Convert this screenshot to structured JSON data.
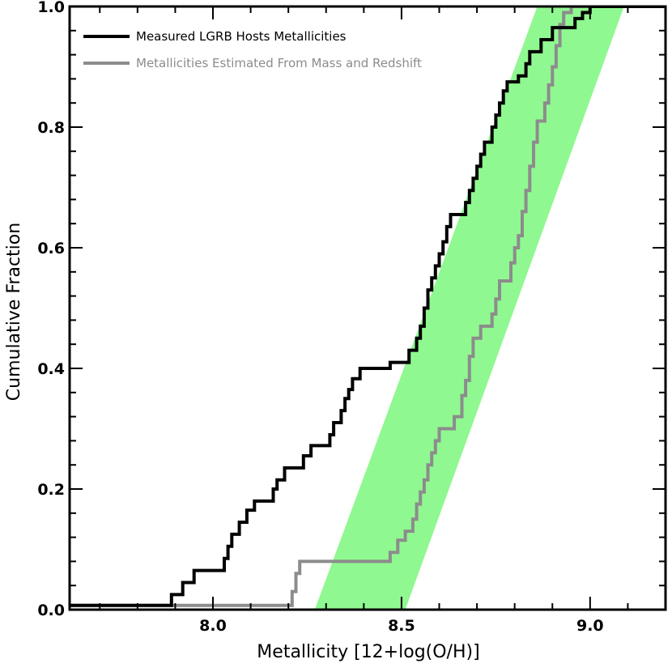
{
  "chart_data": {
    "type": "line",
    "title": "",
    "xlabel": "Metallicity [12+log(O/H)]",
    "ylabel": "Cumulative Fraction",
    "xlim": [
      7.62,
      9.2
    ],
    "ylim": [
      0.0,
      1.0
    ],
    "x_ticks": [
      8.0,
      8.5,
      9.0
    ],
    "x_tick_labels": [
      "8.0",
      "8.5",
      "9.0"
    ],
    "y_ticks": [
      0.0,
      0.2,
      0.4,
      0.6,
      0.8,
      1.0
    ],
    "y_tick_labels": [
      "0.0",
      "0.2",
      "0.4",
      "0.6",
      "0.8",
      "1.0"
    ],
    "grid": false,
    "legend_position": "top-left",
    "band": {
      "color": "#90f890",
      "polygon": [
        [
          8.27,
          0.0
        ],
        [
          8.51,
          0.0
        ],
        [
          9.09,
          1.0
        ],
        [
          8.86,
          1.0
        ]
      ]
    },
    "series": [
      {
        "name": "Measured LGRB Hosts Metallicities",
        "color": "#000000",
        "step_points": [
          [
            7.62,
            0.007
          ],
          [
            7.89,
            0.007
          ],
          [
            7.89,
            0.025
          ],
          [
            7.92,
            0.025
          ],
          [
            7.92,
            0.045
          ],
          [
            7.95,
            0.045
          ],
          [
            7.95,
            0.065
          ],
          [
            8.03,
            0.065
          ],
          [
            8.03,
            0.085
          ],
          [
            8.04,
            0.085
          ],
          [
            8.04,
            0.105
          ],
          [
            8.05,
            0.105
          ],
          [
            8.05,
            0.125
          ],
          [
            8.07,
            0.125
          ],
          [
            8.07,
            0.145
          ],
          [
            8.09,
            0.145
          ],
          [
            8.09,
            0.165
          ],
          [
            8.11,
            0.165
          ],
          [
            8.11,
            0.18
          ],
          [
            8.16,
            0.18
          ],
          [
            8.16,
            0.2
          ],
          [
            8.17,
            0.2
          ],
          [
            8.17,
            0.215
          ],
          [
            8.19,
            0.215
          ],
          [
            8.19,
            0.235
          ],
          [
            8.24,
            0.235
          ],
          [
            8.24,
            0.255
          ],
          [
            8.26,
            0.255
          ],
          [
            8.26,
            0.272
          ],
          [
            8.31,
            0.272
          ],
          [
            8.31,
            0.29
          ],
          [
            8.32,
            0.29
          ],
          [
            8.32,
            0.31
          ],
          [
            8.34,
            0.31
          ],
          [
            8.34,
            0.33
          ],
          [
            8.35,
            0.33
          ],
          [
            8.35,
            0.35
          ],
          [
            8.36,
            0.35
          ],
          [
            8.36,
            0.365
          ],
          [
            8.37,
            0.365
          ],
          [
            8.37,
            0.383
          ],
          [
            8.39,
            0.383
          ],
          [
            8.39,
            0.4
          ],
          [
            8.47,
            0.4
          ],
          [
            8.47,
            0.41
          ],
          [
            8.52,
            0.41
          ],
          [
            8.52,
            0.43
          ],
          [
            8.54,
            0.43
          ],
          [
            8.54,
            0.45
          ],
          [
            8.55,
            0.45
          ],
          [
            8.55,
            0.47
          ],
          [
            8.56,
            0.47
          ],
          [
            8.56,
            0.5
          ],
          [
            8.57,
            0.5
          ],
          [
            8.57,
            0.53
          ],
          [
            8.58,
            0.53
          ],
          [
            8.58,
            0.55
          ],
          [
            8.59,
            0.55
          ],
          [
            8.59,
            0.57
          ],
          [
            8.6,
            0.57
          ],
          [
            8.6,
            0.59
          ],
          [
            8.61,
            0.59
          ],
          [
            8.61,
            0.61
          ],
          [
            8.62,
            0.61
          ],
          [
            8.62,
            0.635
          ],
          [
            8.63,
            0.635
          ],
          [
            8.63,
            0.655
          ],
          [
            8.67,
            0.655
          ],
          [
            8.67,
            0.675
          ],
          [
            8.68,
            0.675
          ],
          [
            8.68,
            0.695
          ],
          [
            8.69,
            0.695
          ],
          [
            8.69,
            0.715
          ],
          [
            8.7,
            0.715
          ],
          [
            8.7,
            0.735
          ],
          [
            8.71,
            0.735
          ],
          [
            8.71,
            0.755
          ],
          [
            8.72,
            0.755
          ],
          [
            8.72,
            0.775
          ],
          [
            8.74,
            0.775
          ],
          [
            8.74,
            0.8
          ],
          [
            8.75,
            0.8
          ],
          [
            8.75,
            0.82
          ],
          [
            8.76,
            0.82
          ],
          [
            8.76,
            0.84
          ],
          [
            8.77,
            0.84
          ],
          [
            8.77,
            0.86
          ],
          [
            8.78,
            0.86
          ],
          [
            8.78,
            0.875
          ],
          [
            8.81,
            0.875
          ],
          [
            8.81,
            0.885
          ],
          [
            8.83,
            0.885
          ],
          [
            8.83,
            0.905
          ],
          [
            8.84,
            0.905
          ],
          [
            8.84,
            0.925
          ],
          [
            8.87,
            0.925
          ],
          [
            8.87,
            0.945
          ],
          [
            8.9,
            0.945
          ],
          [
            8.9,
            0.965
          ],
          [
            8.96,
            0.965
          ],
          [
            8.96,
            0.98
          ],
          [
            8.98,
            0.98
          ],
          [
            8.98,
            0.99
          ],
          [
            9.0,
            0.99
          ],
          [
            9.0,
            1.0
          ],
          [
            9.2,
            1.0
          ]
        ]
      },
      {
        "name": "Metallicities Estimated From Mass and Redshift",
        "color": "#8c8c8c",
        "step_points": [
          [
            7.62,
            0.007
          ],
          [
            8.21,
            0.007
          ],
          [
            8.21,
            0.03
          ],
          [
            8.22,
            0.03
          ],
          [
            8.22,
            0.06
          ],
          [
            8.23,
            0.06
          ],
          [
            8.23,
            0.08
          ],
          [
            8.47,
            0.08
          ],
          [
            8.47,
            0.095
          ],
          [
            8.49,
            0.095
          ],
          [
            8.49,
            0.115
          ],
          [
            8.51,
            0.115
          ],
          [
            8.51,
            0.13
          ],
          [
            8.53,
            0.13
          ],
          [
            8.53,
            0.15
          ],
          [
            8.54,
            0.15
          ],
          [
            8.54,
            0.175
          ],
          [
            8.55,
            0.175
          ],
          [
            8.55,
            0.195
          ],
          [
            8.56,
            0.195
          ],
          [
            8.56,
            0.215
          ],
          [
            8.57,
            0.215
          ],
          [
            8.57,
            0.24
          ],
          [
            8.58,
            0.24
          ],
          [
            8.58,
            0.26
          ],
          [
            8.59,
            0.26
          ],
          [
            8.59,
            0.28
          ],
          [
            8.6,
            0.28
          ],
          [
            8.6,
            0.3
          ],
          [
            8.64,
            0.3
          ],
          [
            8.64,
            0.32
          ],
          [
            8.66,
            0.32
          ],
          [
            8.66,
            0.355
          ],
          [
            8.67,
            0.355
          ],
          [
            8.67,
            0.38
          ],
          [
            8.68,
            0.38
          ],
          [
            8.68,
            0.42
          ],
          [
            8.69,
            0.42
          ],
          [
            8.69,
            0.45
          ],
          [
            8.71,
            0.45
          ],
          [
            8.71,
            0.47
          ],
          [
            8.74,
            0.47
          ],
          [
            8.74,
            0.49
          ],
          [
            8.75,
            0.49
          ],
          [
            8.75,
            0.515
          ],
          [
            8.76,
            0.515
          ],
          [
            8.76,
            0.545
          ],
          [
            8.79,
            0.545
          ],
          [
            8.79,
            0.575
          ],
          [
            8.8,
            0.575
          ],
          [
            8.8,
            0.6
          ],
          [
            8.81,
            0.6
          ],
          [
            8.81,
            0.62
          ],
          [
            8.82,
            0.62
          ],
          [
            8.82,
            0.66
          ],
          [
            8.83,
            0.66
          ],
          [
            8.83,
            0.695
          ],
          [
            8.84,
            0.695
          ],
          [
            8.84,
            0.735
          ],
          [
            8.85,
            0.735
          ],
          [
            8.85,
            0.775
          ],
          [
            8.86,
            0.775
          ],
          [
            8.86,
            0.81
          ],
          [
            8.88,
            0.81
          ],
          [
            8.88,
            0.84
          ],
          [
            8.89,
            0.84
          ],
          [
            8.89,
            0.87
          ],
          [
            8.9,
            0.87
          ],
          [
            8.9,
            0.9
          ],
          [
            8.91,
            0.9
          ],
          [
            8.91,
            0.935
          ],
          [
            8.92,
            0.935
          ],
          [
            8.92,
            0.97
          ],
          [
            8.93,
            0.97
          ],
          [
            8.93,
            0.99
          ],
          [
            8.95,
            0.99
          ],
          [
            8.95,
            1.0
          ],
          [
            9.2,
            1.0
          ]
        ]
      }
    ]
  }
}
